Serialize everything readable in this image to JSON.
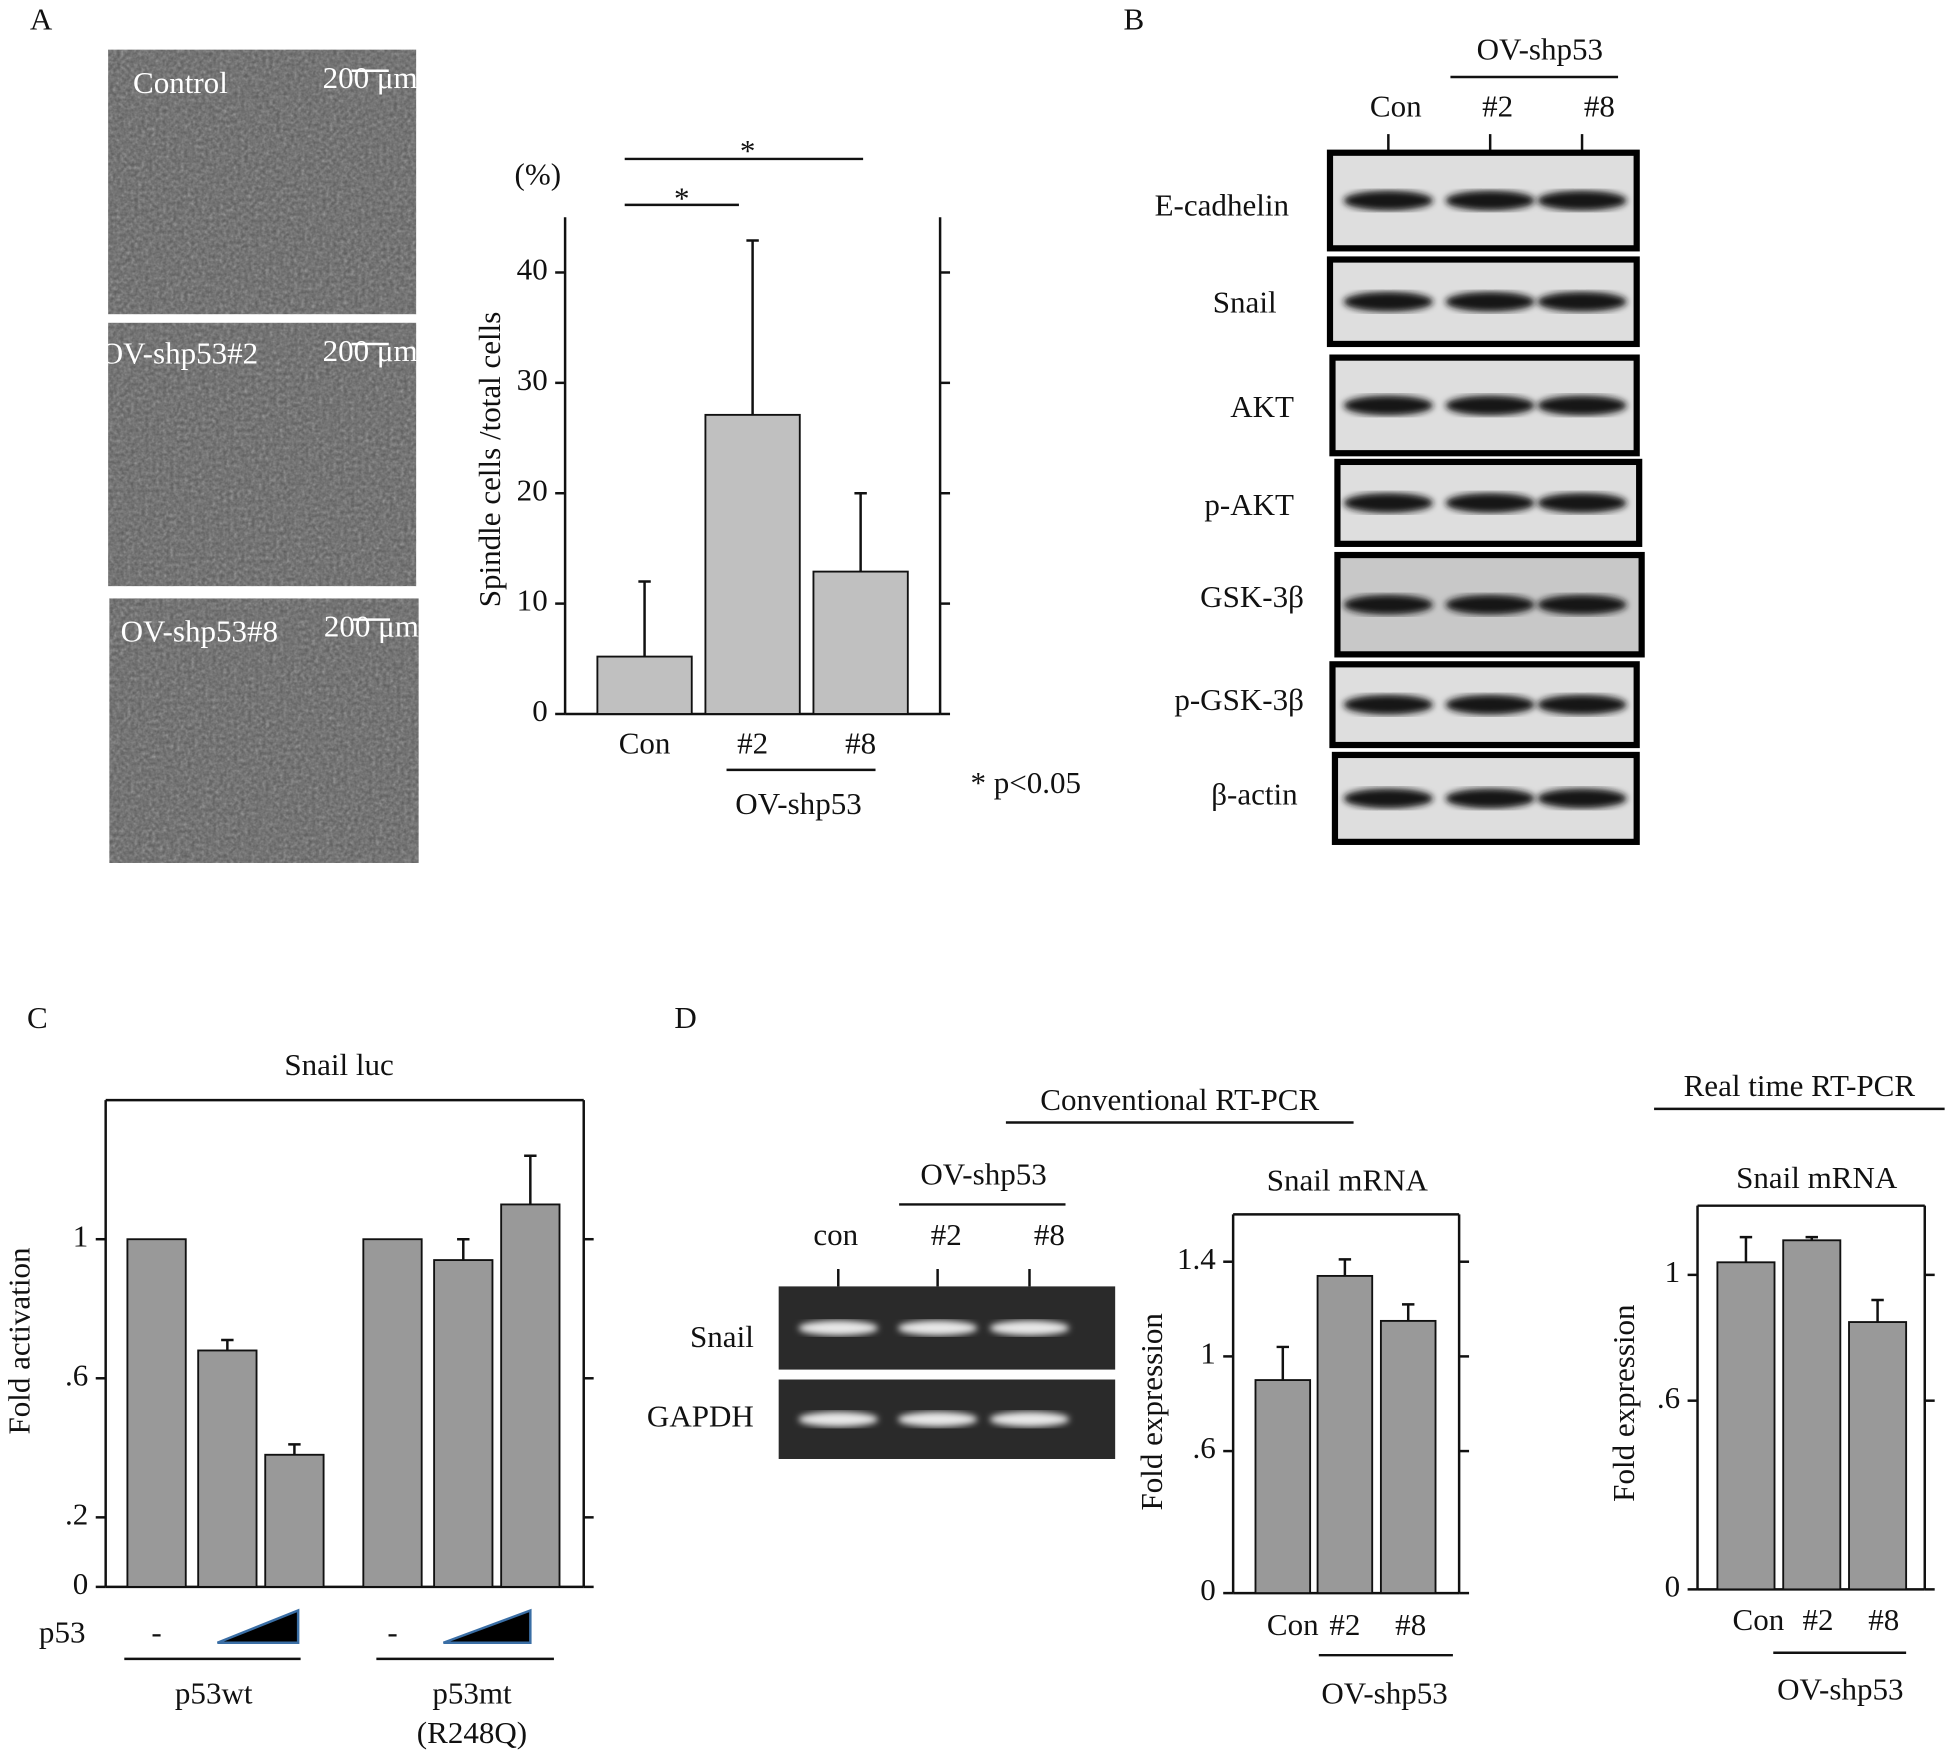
{
  "panel_labels": [
    "A",
    "B",
    "C",
    "D"
  ],
  "micrographs": [
    {
      "label": "Control",
      "scale_bar": "200 μm"
    },
    {
      "label": "OV-shp53#2",
      "scale_bar": "200 μm"
    },
    {
      "label": "OV-shp53#8",
      "scale_bar": "200 μm"
    }
  ],
  "western_blot": {
    "group_label": "OV-shp53",
    "lanes": [
      "Con",
      "#2",
      "#8"
    ],
    "rows": [
      "E-cadhelin",
      "Snail",
      "AKT",
      "p-AKT",
      "GSK-3β",
      "p-GSK-3β",
      "β-actin"
    ]
  },
  "rt_pcr_gel": {
    "heading": "Conventional RT-PCR",
    "group_label": "OV-shp53",
    "lanes": [
      "con",
      "#2",
      "#8"
    ],
    "rows": [
      "Snail",
      "GAPDH"
    ]
  },
  "real_time_heading": "Real time RT-PCR",
  "chart_data": [
    {
      "type": "bar",
      "y_unit": "(%)",
      "y_label": "Spindle cells /total cells",
      "categories": [
        "Con",
        "#2",
        "#8"
      ],
      "values": [
        5.2,
        27.1,
        12.9
      ],
      "errors": [
        6.8,
        15.8,
        7.1
      ],
      "color": "#c0c0c0",
      "ylim": [
        0,
        45
      ],
      "yticks": [
        0,
        10,
        20,
        30,
        40
      ],
      "groups": [
        "OV-shp53"
      ],
      "significance": [
        "*",
        "*"
      ],
      "note": "* p<0.05"
    },
    {
      "type": "bar",
      "title": "Snail luc",
      "y_label": "Fold activation",
      "row_label": "p53",
      "categories": [
        "-",
        null,
        null,
        "-",
        null,
        null
      ],
      "values": [
        1,
        0.68,
        0.38,
        1,
        0.94,
        1.1
      ],
      "errors": [
        null,
        0.03,
        0.03,
        null,
        0.06,
        0.14
      ],
      "color": "#999999",
      "ylim": [
        0,
        1.4
      ],
      "yticks": [
        0,
        {
          "value": 0.2,
          "label": ".2"
        },
        {
          "value": 0.6,
          "label": ".6"
        },
        1
      ],
      "groups": [
        [
          "p53wt"
        ],
        [
          "p53mt",
          "(R248Q)"
        ]
      ]
    },
    {
      "type": "bar",
      "title": "Snail mRNA",
      "y_label": "Fold expression",
      "categories": [
        "Con",
        "#2",
        "#8"
      ],
      "values": [
        0.9,
        1.34,
        1.15
      ],
      "errors": [
        0.14,
        0.07,
        0.07
      ],
      "color": "#999999",
      "ylim": [
        0,
        1.6
      ],
      "yticks": [
        0,
        {
          "value": 0.6,
          "label": ".6"
        },
        1,
        1.4
      ],
      "groups": [
        "OV-shp53"
      ]
    },
    {
      "type": "bar",
      "title": "Snail mRNA",
      "y_label": "Fold expression",
      "categories": [
        "Con",
        "#2",
        "#8"
      ],
      "values": [
        1.04,
        1.11,
        0.85
      ],
      "errors": [
        0.08,
        0.01,
        0.07
      ],
      "color": "#999999",
      "ylim": [
        0,
        1.22
      ],
      "yticks": [
        0,
        {
          "value": 0.6,
          "label": ".6"
        },
        1
      ],
      "groups": [
        "OV-shp53"
      ]
    }
  ]
}
